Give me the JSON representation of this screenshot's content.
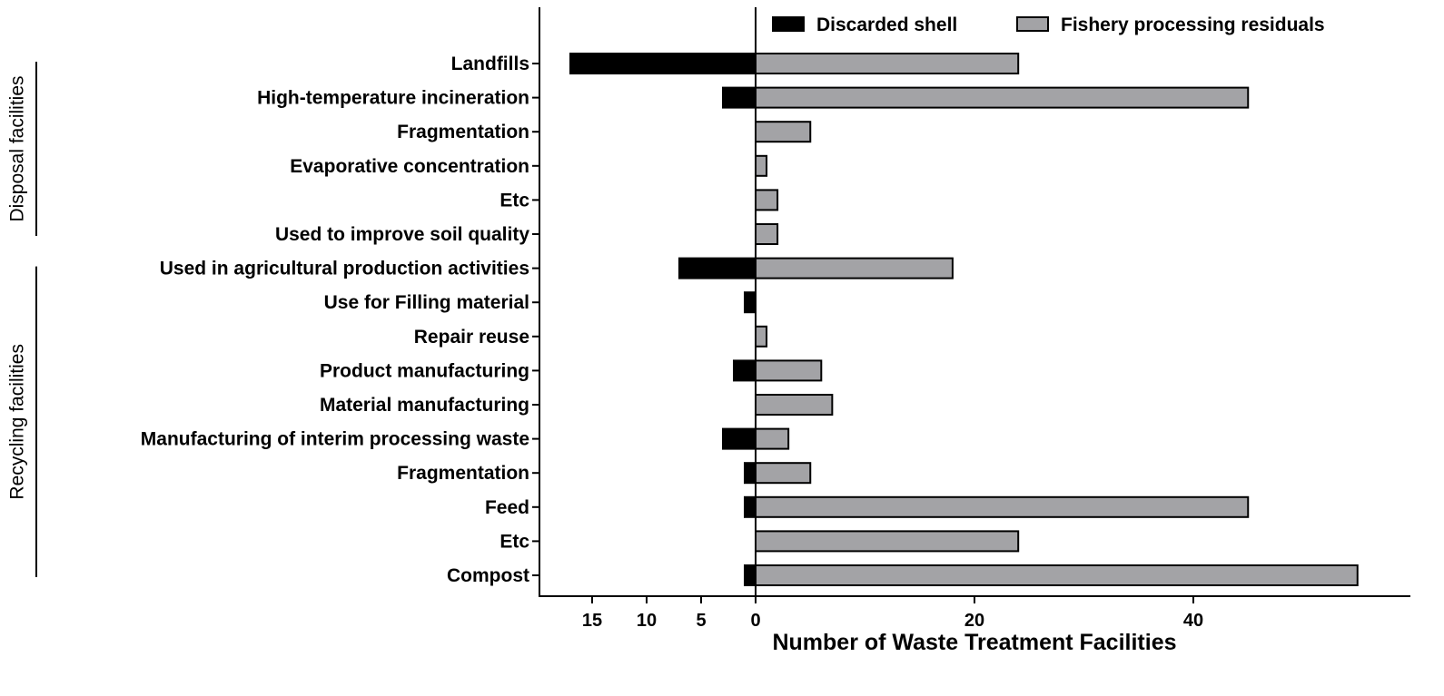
{
  "chart_data": {
    "type": "bar",
    "orientation": "horizontal",
    "xlabel": "Number of Waste Treatment Facilities",
    "ylabel": "",
    "title": "",
    "legend_position": "top-right",
    "grid": false,
    "xlim": [
      -17,
      60
    ],
    "x_ticks": [
      {
        "value": -15,
        "label": "15"
      },
      {
        "value": -10,
        "label": "10"
      },
      {
        "value": -5,
        "label": "5"
      },
      {
        "value": 0,
        "label": "0"
      },
      {
        "value": 20,
        "label": "20"
      },
      {
        "value": 40,
        "label": "40"
      }
    ],
    "categories": [
      "Landfills",
      "High-temperature incineration",
      "Fragmentation",
      "Evaporative concentration",
      "Etc",
      "Used to improve soil quality",
      "Used in agricultural production activities",
      "Use for Filling material",
      "Repair reuse",
      "Product manufacturing",
      "Material manufacturing",
      "Manufacturing of interim processing waste",
      "Fragmentation",
      "Feed",
      "Etc",
      "Compost"
    ],
    "groups": [
      {
        "label": "Disposal facilities",
        "from": 0,
        "to": 5
      },
      {
        "label": "Recycling facilities",
        "from": 6,
        "to": 15
      }
    ],
    "series": [
      {
        "name": "Discarded shell",
        "color": "#000000",
        "direction": "left",
        "values": [
          17,
          3,
          0,
          0,
          0,
          0,
          7,
          1,
          0,
          2,
          0,
          3,
          1,
          1,
          0,
          1
        ]
      },
      {
        "name": "Fishery processing residuals",
        "color": "#a3a3a6",
        "direction": "right",
        "values": [
          24,
          45,
          5,
          1,
          2,
          2,
          18,
          0,
          1,
          6,
          7,
          3,
          5,
          45,
          24,
          55
        ]
      }
    ]
  }
}
